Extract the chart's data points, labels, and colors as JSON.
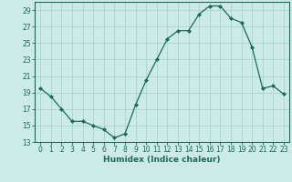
{
  "x": [
    0,
    1,
    2,
    3,
    4,
    5,
    6,
    7,
    8,
    9,
    10,
    11,
    12,
    13,
    14,
    15,
    16,
    17,
    18,
    19,
    20,
    21,
    22,
    23
  ],
  "y": [
    19.5,
    18.5,
    17.0,
    15.5,
    15.5,
    15.0,
    14.5,
    13.5,
    14.0,
    17.5,
    20.5,
    23.0,
    25.5,
    26.5,
    26.5,
    28.5,
    29.5,
    29.5,
    28.0,
    27.5,
    24.5,
    19.5,
    19.8,
    18.8
  ],
  "line_color": "#1a6b5a",
  "marker": "D",
  "marker_size": 2,
  "bg_color": "#cceae7",
  "grid_color": "#aad4cf",
  "xlabel": "Humidex (Indice chaleur)",
  "xlim": [
    -0.5,
    23.5
  ],
  "ylim": [
    13,
    30
  ],
  "yticks": [
    13,
    15,
    17,
    19,
    21,
    23,
    25,
    27,
    29
  ],
  "xticks": [
    0,
    1,
    2,
    3,
    4,
    5,
    6,
    7,
    8,
    9,
    10,
    11,
    12,
    13,
    14,
    15,
    16,
    17,
    18,
    19,
    20,
    21,
    22,
    23
  ],
  "xlabel_fontsize": 6.5,
  "tick_fontsize": 5.5
}
